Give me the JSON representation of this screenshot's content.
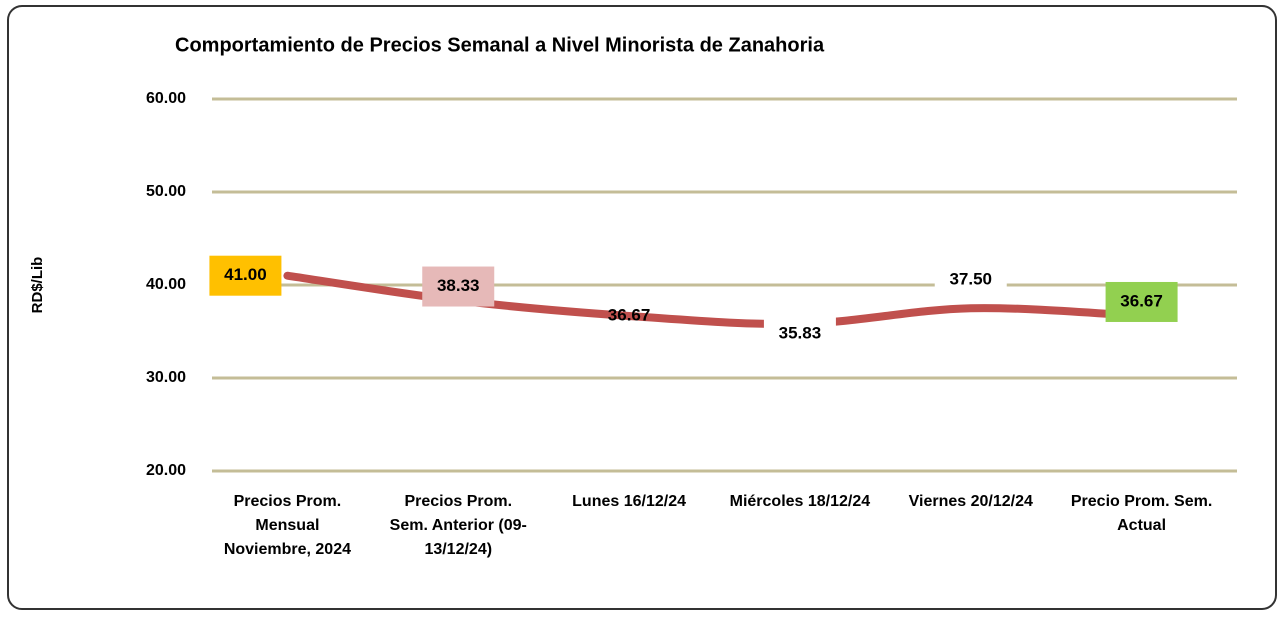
{
  "chart_data": {
    "type": "line",
    "title": "Comportamiento de Precios Semanal a Nivel Minorista de Zanahoria",
    "y_label": "RD$/Lib",
    "categories": [
      "Precios Prom. Mensual Noviembre, 2024",
      "Precios Prom. Sem. Anterior (09-13/12/24)",
      "Lunes 16/12/24",
      "Miércoles 18/12/24",
      "Viernes 20/12/24",
      "Precio Prom. Sem. Actual"
    ],
    "series": [
      {
        "name": "Zanahoria",
        "color": "#c0504d",
        "values": [
          41.0,
          38.33,
          36.67,
          35.83,
          37.5,
          36.67
        ],
        "value_labels": [
          "41.00",
          "38.33",
          "36.67",
          "35.83",
          "37.50",
          "36.67"
        ],
        "label_backgrounds": [
          "#ffc000",
          "#e6b9b8",
          null,
          "#ffffff",
          "#ffffff",
          "#92d050"
        ]
      }
    ],
    "ylim": [
      20,
      60
    ],
    "yticks": [
      {
        "value": 20,
        "label": "20.00"
      },
      {
        "value": 30,
        "label": "30.00"
      },
      {
        "value": 40,
        "label": "40.00"
      },
      {
        "value": 50,
        "label": "50.00"
      },
      {
        "value": 60,
        "label": "60.00"
      }
    ],
    "grid": true,
    "smooth": true
  }
}
